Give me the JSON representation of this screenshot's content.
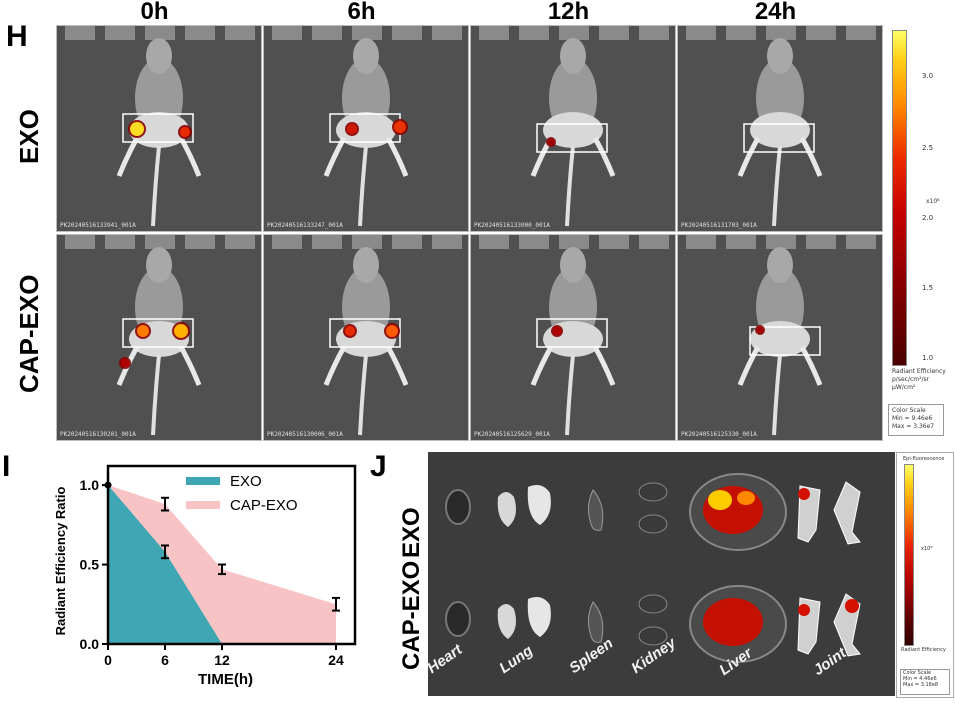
{
  "panel_h": {
    "letter": "H",
    "columns": [
      "0h",
      "6h",
      "12h",
      "24h"
    ],
    "rows": [
      "EXO",
      "CAP-EXO"
    ],
    "image_ids": [
      [
        "PK20240516133941_001A",
        "PK20240516133247_001A",
        "PK20240516133000_001A",
        "PK20240516131703_001A"
      ],
      [
        "PK20240516130201_001A",
        "PK20240516130006_001A",
        "PK20240516125629_001A",
        "PK20240516125330_001A"
      ]
    ],
    "colorbar": {
      "ticks": [
        "3.0",
        "2.5",
        "2.0",
        "1.5",
        "1.0"
      ],
      "exponent": "x10⁸",
      "unit_title": "Radiant Efficiency",
      "unit_num": "p/sec/cm²/sr",
      "unit_den": "μW/cm²",
      "scale_title": "Color Scale",
      "scale_min": "Min = 9.46e6",
      "scale_max": "Max = 3.36e7"
    }
  },
  "panel_i": {
    "letter": "I",
    "ylabel": "Radiant Efficiency Ratio",
    "xlabel": "TIME(h)",
    "legend": [
      "EXO",
      "CAP-EXO"
    ],
    "colors": {
      "EXO": "#3fa6b4",
      "CAP-EXO": "#f7c3c4"
    }
  },
  "panel_j": {
    "letter": "J",
    "rows": [
      "EXO",
      "CAP-EXO"
    ],
    "organs": [
      "Heart",
      "Lung",
      "Spleen",
      "Kidney",
      "Liver",
      "Joint"
    ],
    "colorbar_title": "Epi-fluorescence",
    "colorbar_exponent": "x10⁸",
    "colorbar_unit": "Radiant Efficiency",
    "colorbar_scale": "Color Scale",
    "colorbar_min": "Min = 4.46e6",
    "colorbar_max": "Max = 3.18e8"
  },
  "chart_data": {
    "type": "area",
    "title": "",
    "xlabel": "TIME(h)",
    "ylabel": "Radiant Efficiency Ratio",
    "x_ticks": [
      0,
      6,
      12,
      24
    ],
    "y_ticks": [
      0.0,
      0.5,
      1.0
    ],
    "xlim": [
      0,
      26
    ],
    "ylim": [
      0,
      1.12
    ],
    "series": [
      {
        "name": "EXO",
        "x": [
          0,
          6,
          12,
          24
        ],
        "y": [
          1.0,
          0.58,
          0.0,
          0.0
        ],
        "error": [
          0,
          0.04,
          0,
          0
        ]
      },
      {
        "name": "CAP-EXO",
        "x": [
          0,
          6,
          12,
          24
        ],
        "y": [
          1.0,
          0.88,
          0.47,
          0.25
        ],
        "error": [
          0,
          0.04,
          0.03,
          0.04
        ]
      }
    ]
  }
}
